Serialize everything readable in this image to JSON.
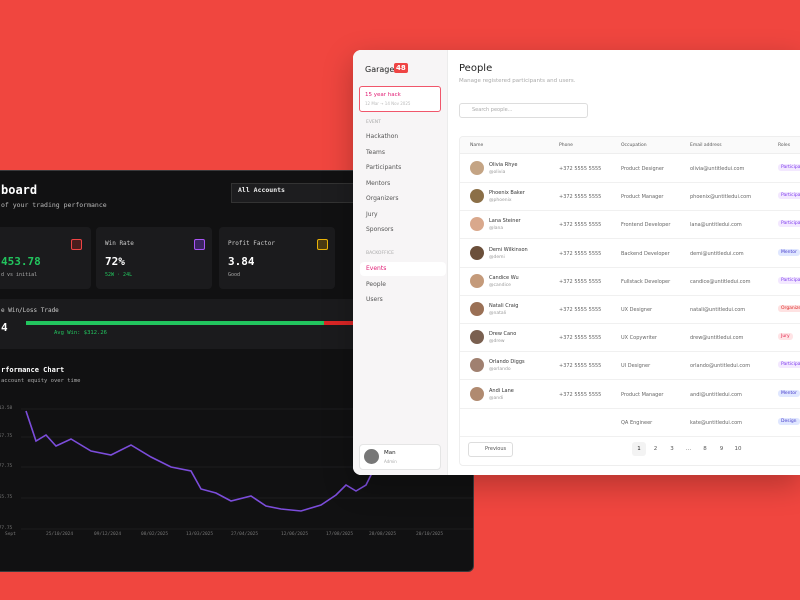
{
  "dashboard": {
    "title": "board",
    "subtitle": "of your trading performance",
    "account_select": "All Accounts",
    "cards": [
      {
        "value": "453.78",
        "note": "d vs initial"
      },
      {
        "label": "Win Rate",
        "value": "72%",
        "note": "52W · 24L"
      },
      {
        "label": "Profit Factor",
        "value": "3.84",
        "note": "Good"
      }
    ],
    "win_loss": {
      "label": "e Win/Loss Trade",
      "value": "4",
      "note": "Avg Win: $312.26"
    },
    "performance": {
      "title": "rformance Chart",
      "subtitle": "account equity over time",
      "y_labels": [
        "113.58",
        "957.75",
        "377.75",
        "355.75",
        "277.75"
      ],
      "x_labels": [
        "Sept",
        "25/10/2024",
        "09/12/2024",
        "08/02/2025",
        "13/03/2025",
        "27/04/2025",
        "12/06/2025",
        "17/08/2025",
        "28/08/2025",
        "20/10/2025"
      ]
    }
  },
  "sidebar": {
    "brand": "Garage",
    "badge": "48",
    "event_name": "15 year hack",
    "event_dates": "12 Mar → 14 Nov 2025",
    "event_section": "EVENT",
    "event_items": [
      "Hackathon",
      "Teams",
      "Participants",
      "Mentors",
      "Organizers",
      "Jury",
      "Sponsors"
    ],
    "backoffice_section": "BACKOFFICE",
    "backoffice_items": [
      "Events",
      "People",
      "Users"
    ],
    "user": {
      "name": "Man",
      "role": "Admin"
    }
  },
  "people": {
    "title": "People",
    "subtitle": "Manage registered participants and users.",
    "search_placeholder": "Search people...",
    "columns": [
      "Name",
      "Phone",
      "Occupation",
      "Email address",
      "Roles"
    ],
    "rows": [
      [
        "Olivia Rhye",
        "@olivia",
        "+372 5555 5555",
        "Product Designer",
        "olivia@untitledui.com",
        "Participant"
      ],
      [
        "Phoenix Baker",
        "@phoenix",
        "+372 5555 5555",
        "Product Manager",
        "phoenix@untitledui.com",
        "Participant"
      ],
      [
        "Lana Steiner",
        "@lana",
        "+372 5555 5555",
        "Frontend Developer",
        "lana@untitledui.com",
        "Participant"
      ],
      [
        "Demi Wilkinson",
        "@demi",
        "+372 5555 5555",
        "Backend Developer",
        "demi@untitledui.com",
        "Mentor"
      ],
      [
        "Candice Wu",
        "@candice",
        "+372 5555 5555",
        "Fullstack Developer",
        "candice@untitledui.com",
        "Participant"
      ],
      [
        "Natali Craig",
        "@natali",
        "+372 5555 5555",
        "UX Designer",
        "natali@untitledui.com",
        "Organizer"
      ],
      [
        "Drew Cano",
        "@drew",
        "+372 5555 5555",
        "UX Copywriter",
        "drew@untitledui.com",
        "Jury"
      ],
      [
        "Orlando Diggs",
        "@orlando",
        "+372 5555 5555",
        "UI Designer",
        "orlando@untitledui.com",
        "Participant"
      ],
      [
        "Andi Lane",
        "@andi",
        "+372 5555 5555",
        "Product Manager",
        "andi@untitledui.com",
        "Mentor"
      ],
      [
        null,
        null,
        null,
        "QA Engineer",
        "kate@untitledui.com",
        "Design"
      ]
    ],
    "previous": "Previous",
    "pages": [
      "1",
      "2",
      "3",
      "...",
      "8",
      "9",
      "10"
    ]
  }
}
